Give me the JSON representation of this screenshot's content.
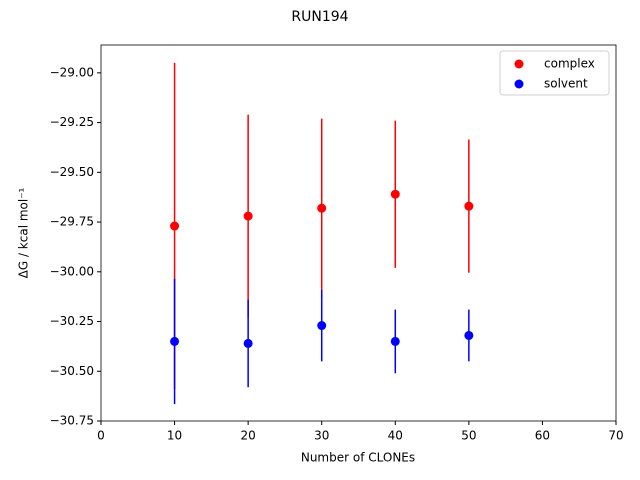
{
  "chart_data": {
    "type": "errorbar",
    "title": "RUN194",
    "x_label": "Number of CLONEs",
    "y_label": "ΔG / kcal mol⁻¹",
    "xlim": [
      0,
      70
    ],
    "xticks": [
      0,
      10,
      20,
      30,
      40,
      50,
      60,
      70
    ],
    "ylim": [
      -30.75,
      -28.86
    ],
    "yticks": [
      {
        "value": -30.75,
        "label": "−30.75"
      },
      {
        "value": -30.5,
        "label": "−30.50"
      },
      {
        "value": -30.25,
        "label": "−30.25"
      },
      {
        "value": -30,
        "label": "−30.00"
      },
      {
        "value": -29.75,
        "label": "−29.75"
      },
      {
        "value": -29.5,
        "label": "−29.50"
      },
      {
        "value": -29.25,
        "label": "−29.25"
      },
      {
        "value": -29,
        "label": "−29.00"
      }
    ],
    "legend": "upper right",
    "series": [
      {
        "name": "complex",
        "color": "#ff0000",
        "x": [
          10,
          20,
          30,
          40,
          50
        ],
        "values": [
          -29.77,
          -29.72,
          -29.68,
          -29.61,
          -29.67
        ],
        "errors": [
          0.82,
          0.51,
          0.45,
          0.37,
          0.335
        ]
      },
      {
        "name": "solvent",
        "color": "#0000ff",
        "x": [
          10,
          20,
          30,
          40,
          50
        ],
        "values": [
          -30.35,
          -30.36,
          -30.27,
          -30.35,
          -30.32
        ],
        "errors": [
          0.315,
          0.22,
          0.18,
          0.16,
          0.13
        ]
      }
    ]
  }
}
